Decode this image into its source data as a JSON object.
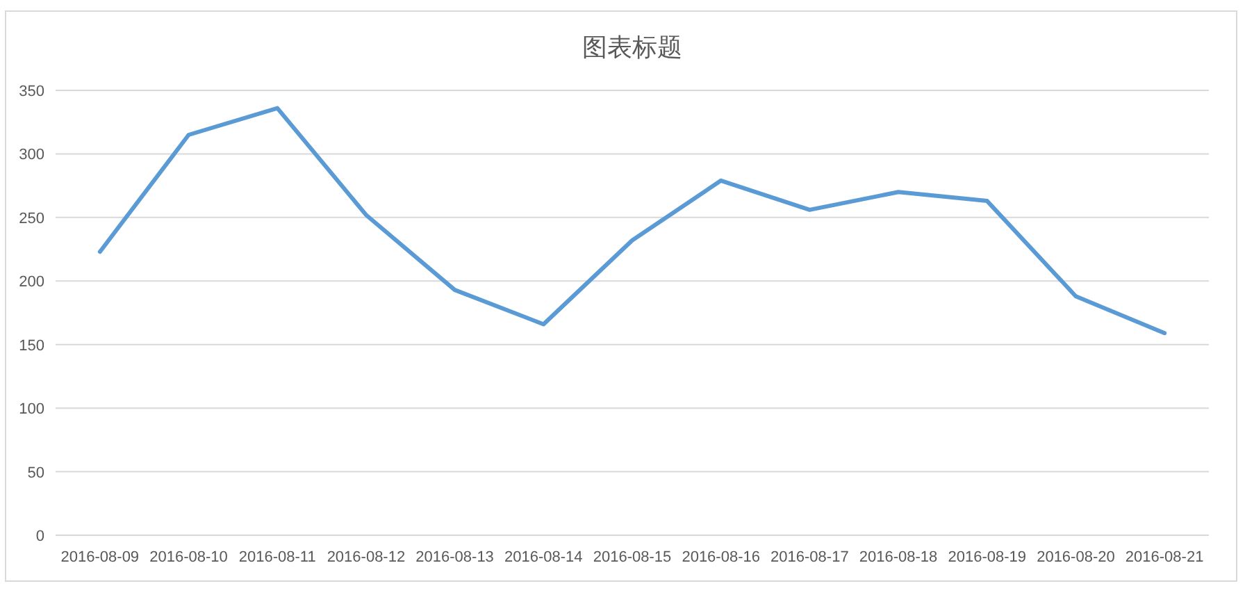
{
  "chart_data": {
    "type": "line",
    "title": "图表标题",
    "categories": [
      "2016-08-09",
      "2016-08-10",
      "2016-08-11",
      "2016-08-12",
      "2016-08-13",
      "2016-08-14",
      "2016-08-15",
      "2016-08-16",
      "2016-08-17",
      "2016-08-18",
      "2016-08-19",
      "2016-08-20",
      "2016-08-21"
    ],
    "series": [
      {
        "color": "#5b9bd5",
        "values": [
          223,
          315,
          336,
          252,
          193,
          166,
          232,
          279,
          256,
          270,
          263,
          188,
          159
        ]
      }
    ],
    "ylim": [
      0,
      350
    ],
    "yticks": [
      0,
      50,
      100,
      150,
      200,
      250,
      300,
      350
    ],
    "grid": "y",
    "marker": "none",
    "line_style": "solid"
  }
}
